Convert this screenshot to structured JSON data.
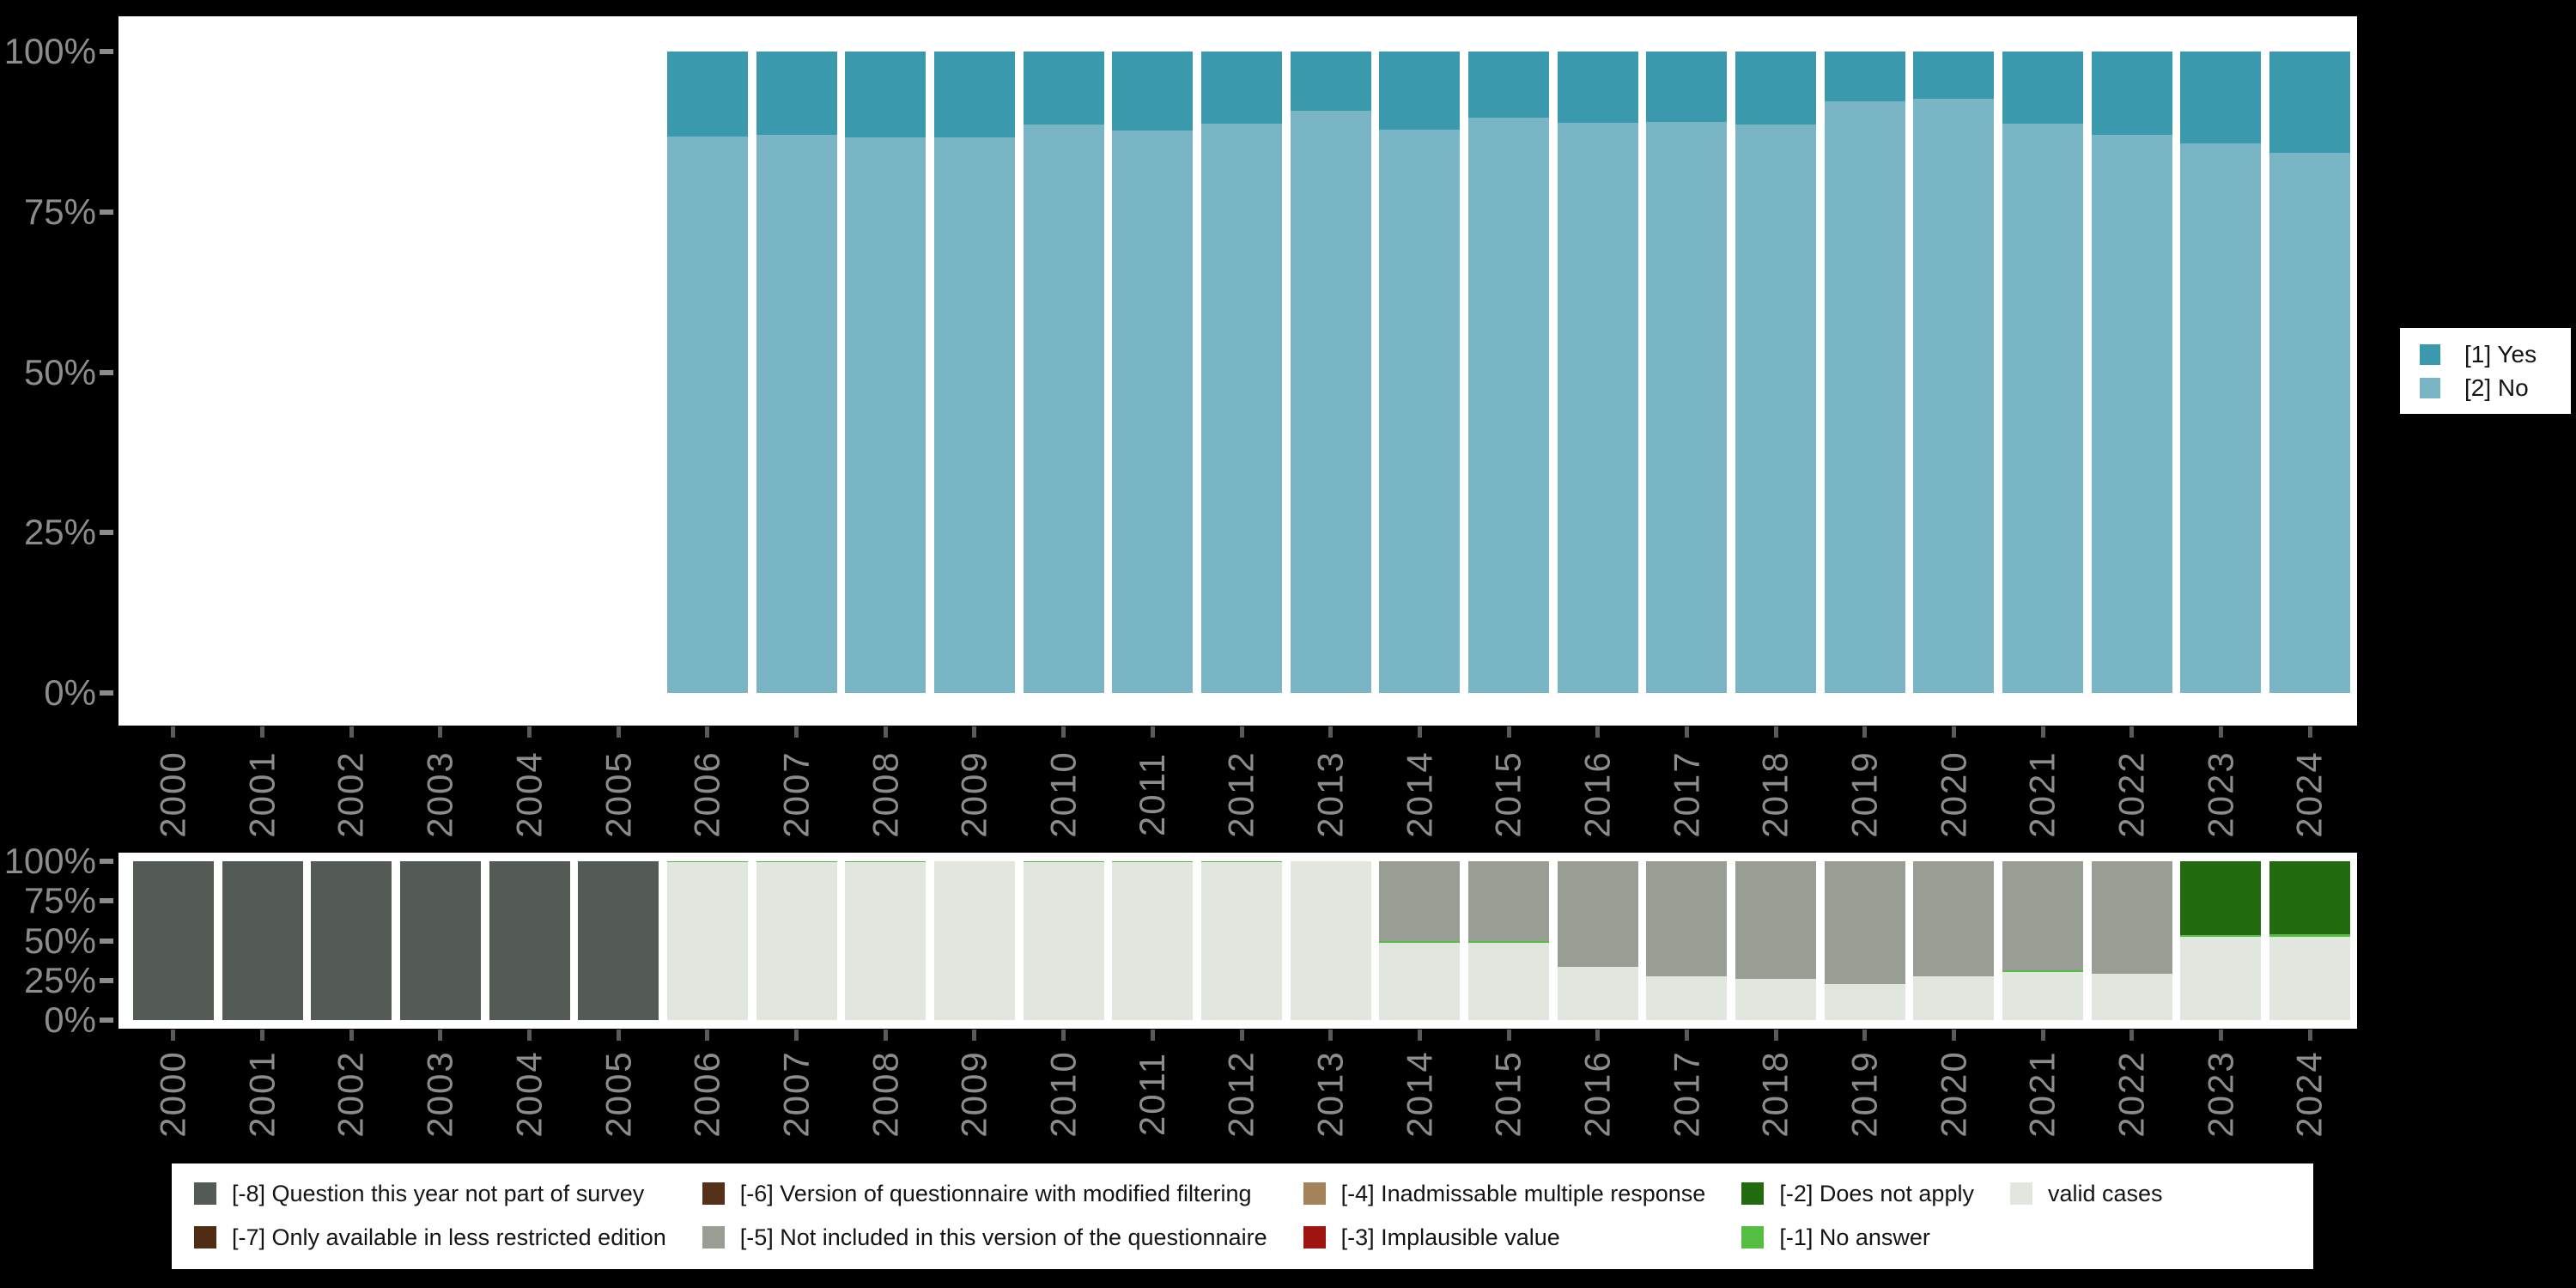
{
  "axis": {
    "y_tick_labels": [
      "100%",
      "75%",
      "50%",
      "25%",
      "0%"
    ],
    "years": [
      "2000",
      "2001",
      "2002",
      "2003",
      "2004",
      "2005",
      "2006",
      "2007",
      "2008",
      "2009",
      "2010",
      "2011",
      "2012",
      "2013",
      "2014",
      "2015",
      "2016",
      "2017",
      "2018",
      "2019",
      "2020",
      "2021",
      "2022",
      "2023",
      "2024"
    ]
  },
  "colors": {
    "yes": "#3a99ad",
    "no": "#79b5c5",
    "m8": "#545b54",
    "m7": "#4f2d15",
    "m6": "#543118",
    "m5": "#999e95",
    "m4": "#a5835a",
    "m3": "#9d1410",
    "m2": "#226b0e",
    "m1": "#56bd43",
    "valid": "#e1e6df",
    "axis_text": "#8c8c8c",
    "panel_bg": "#ffffff",
    "page_bg": "#000000"
  },
  "legend_top": {
    "items": [
      {
        "key": "yes",
        "label": "[1] Yes"
      },
      {
        "key": "no",
        "label": "[2] No"
      }
    ]
  },
  "legend_missing": {
    "columns": [
      [
        {
          "key": "m8",
          "label": "[-8] Question this year not part of survey"
        },
        {
          "key": "m7",
          "label": "[-7] Only available in less restricted edition"
        }
      ],
      [
        {
          "key": "m6",
          "label": "[-6] Version of questionnaire with modified filtering"
        },
        {
          "key": "m5",
          "label": "[-5] Not included in this version of the questionnaire"
        }
      ],
      [
        {
          "key": "m4",
          "label": "[-4] Inadmissable multiple response"
        },
        {
          "key": "m3",
          "label": "[-3] Implausible value"
        }
      ],
      [
        {
          "key": "m2",
          "label": "[-2] Does not apply"
        },
        {
          "key": "m1",
          "label": "[-1] No answer"
        }
      ],
      [
        {
          "key": "valid",
          "label": "valid cases"
        }
      ]
    ]
  },
  "chart_data": [
    {
      "type": "bar",
      "stacked": true,
      "unit": "percent",
      "title": "",
      "xlabel": "",
      "ylabel": "",
      "ylim": [
        0,
        100
      ],
      "grid": false,
      "legend_position": "right",
      "x": [
        "2000",
        "2001",
        "2002",
        "2003",
        "2004",
        "2005",
        "2006",
        "2007",
        "2008",
        "2009",
        "2010",
        "2011",
        "2012",
        "2013",
        "2014",
        "2015",
        "2016",
        "2017",
        "2018",
        "2019",
        "2020",
        "2021",
        "2022",
        "2023",
        "2024"
      ],
      "series": [
        {
          "name": "[1] Yes",
          "key": "yes",
          "values": [
            null,
            null,
            null,
            null,
            null,
            null,
            13.3,
            13.0,
            13.4,
            13.4,
            11.4,
            12.3,
            11.3,
            9.2,
            12.2,
            10.3,
            11.1,
            11.0,
            11.4,
            7.7,
            7.4,
            11.2,
            13.0,
            14.3,
            15.8
          ]
        },
        {
          "name": "[2] No",
          "key": "no",
          "values": [
            null,
            null,
            null,
            null,
            null,
            null,
            86.7,
            87.0,
            86.6,
            86.6,
            88.6,
            87.7,
            88.7,
            90.8,
            87.8,
            89.7,
            88.9,
            89.0,
            88.6,
            92.3,
            92.6,
            88.8,
            87.0,
            85.7,
            84.2
          ]
        }
      ]
    },
    {
      "type": "bar",
      "stacked": true,
      "unit": "percent",
      "title": "",
      "xlabel": "",
      "ylabel": "",
      "ylim": [
        0,
        100
      ],
      "grid": false,
      "legend_position": "bottom",
      "x": [
        "2000",
        "2001",
        "2002",
        "2003",
        "2004",
        "2005",
        "2006",
        "2007",
        "2008",
        "2009",
        "2010",
        "2011",
        "2012",
        "2013",
        "2014",
        "2015",
        "2016",
        "2017",
        "2018",
        "2019",
        "2020",
        "2021",
        "2022",
        "2023",
        "2024"
      ],
      "series": [
        {
          "name": "[-8] Question this year not part of survey",
          "key": "m8",
          "values": [
            100,
            100,
            100,
            100,
            100,
            100,
            0,
            0,
            0,
            0,
            0,
            0,
            0,
            0,
            0,
            0,
            0,
            0,
            0,
            0,
            0,
            0,
            0,
            0,
            0
          ]
        },
        {
          "name": "[-5] Not included in this version of the questionnaire",
          "key": "m5",
          "values": [
            0,
            0,
            0,
            0,
            0,
            0,
            0,
            0,
            0,
            0,
            0,
            0,
            0,
            0,
            50.3,
            50.3,
            66.3,
            72.2,
            73.8,
            77.5,
            72.2,
            68.9,
            71.0,
            0,
            0
          ]
        },
        {
          "name": "[-2] Does not apply",
          "key": "m2",
          "values": [
            0,
            0,
            0,
            0,
            0,
            0,
            0,
            0,
            0,
            0,
            0,
            0,
            0,
            0,
            0,
            0,
            0,
            0,
            0,
            0,
            0,
            0,
            0,
            46.4,
            45.9
          ]
        },
        {
          "name": "[-1] No answer",
          "key": "m1",
          "values": [
            0,
            0,
            0,
            0,
            0,
            0,
            0.8,
            0.8,
            0.8,
            0,
            0.8,
            0.8,
            0.8,
            0,
            1.1,
            1.1,
            0,
            0,
            0,
            0,
            0,
            1.1,
            0,
            1.2,
            1.7
          ]
        },
        {
          "name": "valid cases",
          "key": "valid",
          "values": [
            0,
            0,
            0,
            0,
            0,
            0,
            99.2,
            99.2,
            99.2,
            100,
            99.2,
            99.2,
            99.2,
            100,
            48.6,
            48.6,
            33.7,
            27.8,
            26.2,
            22.5,
            27.8,
            30.0,
            29.0,
            52.4,
            52.4
          ]
        }
      ]
    }
  ]
}
